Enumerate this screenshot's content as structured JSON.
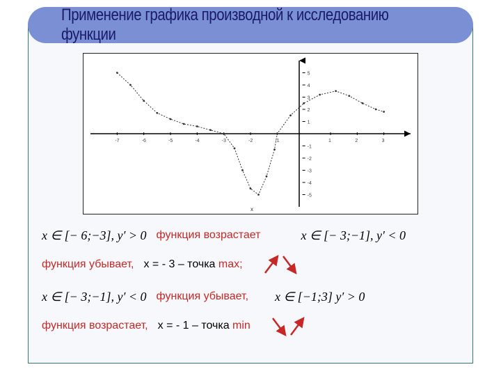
{
  "title": "Применение графика производной к исследованию функции",
  "chart": {
    "type": "line",
    "xlim": [
      -8,
      4
    ],
    "ylim": [
      -6,
      6
    ],
    "xticks": [
      -7,
      -6,
      -5,
      -4,
      -3,
      -2,
      -1,
      1,
      2,
      3
    ],
    "xtick_labels": [
      "-7",
      "-6",
      "-5",
      "-4",
      "-3",
      "-2",
      "-1",
      "1",
      "2",
      "3"
    ],
    "yticks": [
      -5,
      -4,
      -3,
      -2,
      -1,
      1,
      2,
      3,
      4,
      5
    ],
    "ytick_labels": [
      "-5",
      "-4",
      "-3",
      "-2",
      "-1",
      "1",
      "2",
      "3",
      "4",
      "5"
    ],
    "curve_points": [
      [
        -7,
        5
      ],
      [
        -6.5,
        4
      ],
      [
        -6,
        2.7
      ],
      [
        -5.5,
        1.7
      ],
      [
        -5,
        1.2
      ],
      [
        -4.5,
        0.8
      ],
      [
        -4,
        0.6
      ],
      [
        -3.5,
        0.3
      ],
      [
        -3,
        0
      ],
      [
        -2.6,
        -1.2
      ],
      [
        -2.3,
        -3
      ],
      [
        -2,
        -4.5
      ],
      [
        -1.7,
        -5
      ],
      [
        -1.4,
        -3.5
      ],
      [
        -1.1,
        -1.3
      ],
      [
        -1,
        0
      ],
      [
        -0.5,
        1.5
      ],
      [
        0,
        2.5
      ],
      [
        0.6,
        3.2
      ],
      [
        1.2,
        3.5
      ],
      [
        1.7,
        3.1
      ],
      [
        2.2,
        2.5
      ],
      [
        2.7,
        2.0
      ],
      [
        3,
        1.8
      ]
    ],
    "axis_color": "#000000",
    "curve_color": "#333333",
    "grid": false,
    "background_color": "#ffffff",
    "xlabel": "x"
  },
  "lines": {
    "line1_math": "x ∈ [− 6;−3], y′ > 0",
    "line1_text": "функция возрастает",
    "line2_math": "x ∈ [− 3;−1], y′ < 0",
    "line3_prefix": "функция убывает,",
    "line3_point": "x = - 3 – точка ",
    "line3_max": "max;",
    "line4_math": "x ∈ [− 3;−1], y′ < 0",
    "line4_text": "функция убывает,",
    "line5_math": "x ∈ [−1;3] y′ > 0",
    "line6_prefix": "функция возрастает,",
    "line6_point": " x = - 1 – точка ",
    "line6_min": "min"
  },
  "colors": {
    "banner": "#7a8fd4",
    "title": "#1a1a6a",
    "frame_border": "#337777",
    "frame_bg": "#f7f8fb",
    "red_text": "#c62828",
    "arrow": "#c62828"
  }
}
